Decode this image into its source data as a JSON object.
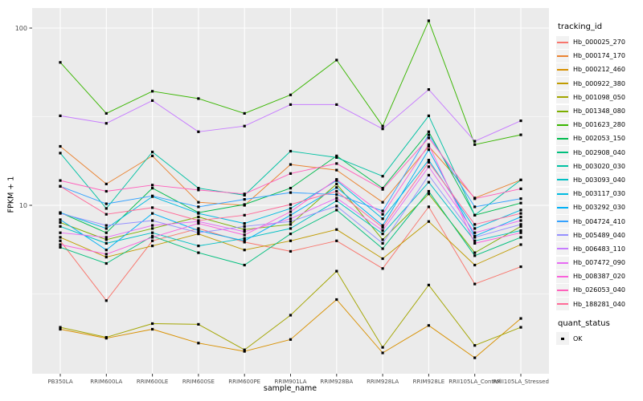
{
  "figure": {
    "bg": "#FFFFFF",
    "panel_bg": "#EBEBEB",
    "grid_color": "#FFFFFF",
    "tick_color": "#333333",
    "tick_label_color": "#4D4D4D",
    "point_color": "#000000",
    "legend_key_bg": "#F2F2F2"
  },
  "axes": {
    "y_title": "FPKM + 1",
    "x_title": "sample_name",
    "y_ticks": [
      {
        "label": "10",
        "value": 10
      },
      {
        "label": "100",
        "value": 100
      }
    ],
    "y_minor_breaks": [
      3.1623,
      31.623
    ]
  },
  "legend": {
    "tracking_title": "tracking_id",
    "quant_title": "quant_status",
    "quant_items": [
      {
        "label": "OK"
      }
    ]
  },
  "chart_data": {
    "type": "line",
    "title": "",
    "xlabel": "sample_name",
    "ylabel": "FPKM + 1",
    "y_scale": "log10",
    "ylim": [
      1.1,
      130
    ],
    "grid": "on",
    "legend_position": "right",
    "point_shape": "filled-square",
    "categories": [
      "PB350LA",
      "RRIM600LA",
      "RRIM600LE",
      "RRIM600SE",
      "RRIM600PE",
      "RRIM901LA",
      "RRIM928BA",
      "RRIM928LA",
      "RRIM928LE",
      "RRII105LA_Control",
      "RRII105LA_Stressed"
    ],
    "series": [
      {
        "name": "Hb_000025_270",
        "color": "#F8766D",
        "values": [
          6.3,
          2.9,
          6.3,
          7.4,
          6.2,
          5.5,
          6.3,
          4.4,
          9.8,
          3.6,
          4.5
        ]
      },
      {
        "name": "Hb_000174_170",
        "color": "#EA8331",
        "values": [
          21.5,
          13.2,
          19.0,
          10.4,
          10.0,
          17.0,
          15.8,
          10.4,
          21.5,
          11.0,
          13.9
        ]
      },
      {
        "name": "Hb_000212_460",
        "color": "#D89000",
        "values": [
          2.0,
          1.78,
          2.0,
          1.67,
          1.5,
          1.75,
          2.94,
          1.47,
          2.1,
          1.38,
          2.3
        ]
      },
      {
        "name": "Hb_000922_380",
        "color": "#C09B00",
        "values": [
          6.6,
          5.1,
          5.9,
          6.9,
          5.6,
          6.3,
          7.3,
          5.0,
          8.1,
          4.6,
          6.0
        ]
      },
      {
        "name": "Hb_001098_050",
        "color": "#A3A500",
        "values": [
          2.05,
          1.8,
          2.15,
          2.13,
          1.53,
          2.4,
          4.25,
          1.58,
          3.55,
          1.62,
          2.05
        ]
      },
      {
        "name": "Hb_001348_080",
        "color": "#7CAE00",
        "values": [
          8.0,
          6.4,
          7.4,
          8.6,
          7.3,
          7.8,
          13.2,
          6.4,
          11.6,
          5.4,
          7.6
        ]
      },
      {
        "name": "Hb_001623_280",
        "color": "#39B600",
        "values": [
          64,
          33,
          44,
          40,
          33,
          42,
          66,
          28,
          110,
          22,
          25
        ]
      },
      {
        "name": "Hb_002053_150",
        "color": "#00BB4E",
        "values": [
          9.1,
          7.0,
          12.5,
          9.1,
          10.1,
          12.5,
          19.0,
          12.5,
          26.0,
          8.8,
          10.3
        ]
      },
      {
        "name": "Hb_002908_040",
        "color": "#00BF7D",
        "values": [
          5.8,
          4.7,
          6.7,
          5.4,
          4.6,
          6.9,
          9.4,
          5.7,
          12.0,
          5.2,
          6.6
        ]
      },
      {
        "name": "Hb_003020_030",
        "color": "#00C1A3",
        "values": [
          19.7,
          9.6,
          20.0,
          12.5,
          11.4,
          20.2,
          18.6,
          14.6,
          32.0,
          8.8,
          13.9
        ]
      },
      {
        "name": "Hb_003093_040",
        "color": "#00BFC4",
        "values": [
          7.6,
          6.1,
          7.0,
          5.9,
          6.5,
          7.4,
          10.6,
          6.9,
          13.5,
          6.3,
          7.2
        ]
      },
      {
        "name": "Hb_003117_030",
        "color": "#00BAE0",
        "values": [
          9.1,
          7.4,
          11.2,
          9.0,
          7.9,
          9.6,
          13.8,
          8.4,
          18.0,
          7.4,
          9.4
        ]
      },
      {
        "name": "Hb_003292_030",
        "color": "#00B0F6",
        "values": [
          8.3,
          5.6,
          9.0,
          7.2,
          6.3,
          8.8,
          12.6,
          7.7,
          20.6,
          6.7,
          8.6
        ]
      },
      {
        "name": "Hb_004724_410",
        "color": "#35A2FF",
        "values": [
          12.8,
          10.2,
          11.3,
          9.8,
          10.8,
          11.8,
          11.5,
          9.3,
          25.0,
          9.8,
          10.9
        ]
      },
      {
        "name": "Hb_005489_040",
        "color": "#9590FF",
        "values": [
          9.0,
          7.7,
          8.2,
          7.0,
          7.6,
          8.1,
          9.9,
          6.1,
          14.8,
          6.6,
          7.8
        ]
      },
      {
        "name": "Hb_006483_110",
        "color": "#C77CFF",
        "values": [
          32,
          29,
          39,
          26,
          28,
          37,
          37,
          27,
          45,
          23,
          30
        ]
      },
      {
        "name": "Hb_007472_090",
        "color": "#E76BF3",
        "values": [
          7.0,
          6.6,
          7.7,
          8.1,
          7.1,
          8.4,
          11.0,
          7.2,
          16.5,
          7.0,
          8.2
        ]
      },
      {
        "name": "Hb_008387_020",
        "color": "#FA62DB",
        "values": [
          6.0,
          5.3,
          6.6,
          7.9,
          6.8,
          9.2,
          14.0,
          8.9,
          22.0,
          6.1,
          7.0
        ]
      },
      {
        "name": "Hb_026053_040",
        "color": "#FF62BC",
        "values": [
          13.8,
          12.0,
          13.0,
          12.2,
          11.6,
          15.1,
          17.2,
          12.3,
          24.0,
          10.9,
          12.4
        ]
      },
      {
        "name": "Hb_188281_040",
        "color": "#FF6A98",
        "values": [
          12.8,
          8.9,
          9.7,
          8.2,
          8.8,
          10.1,
          12.0,
          7.5,
          17.5,
          7.8,
          9.0
        ]
      }
    ]
  }
}
